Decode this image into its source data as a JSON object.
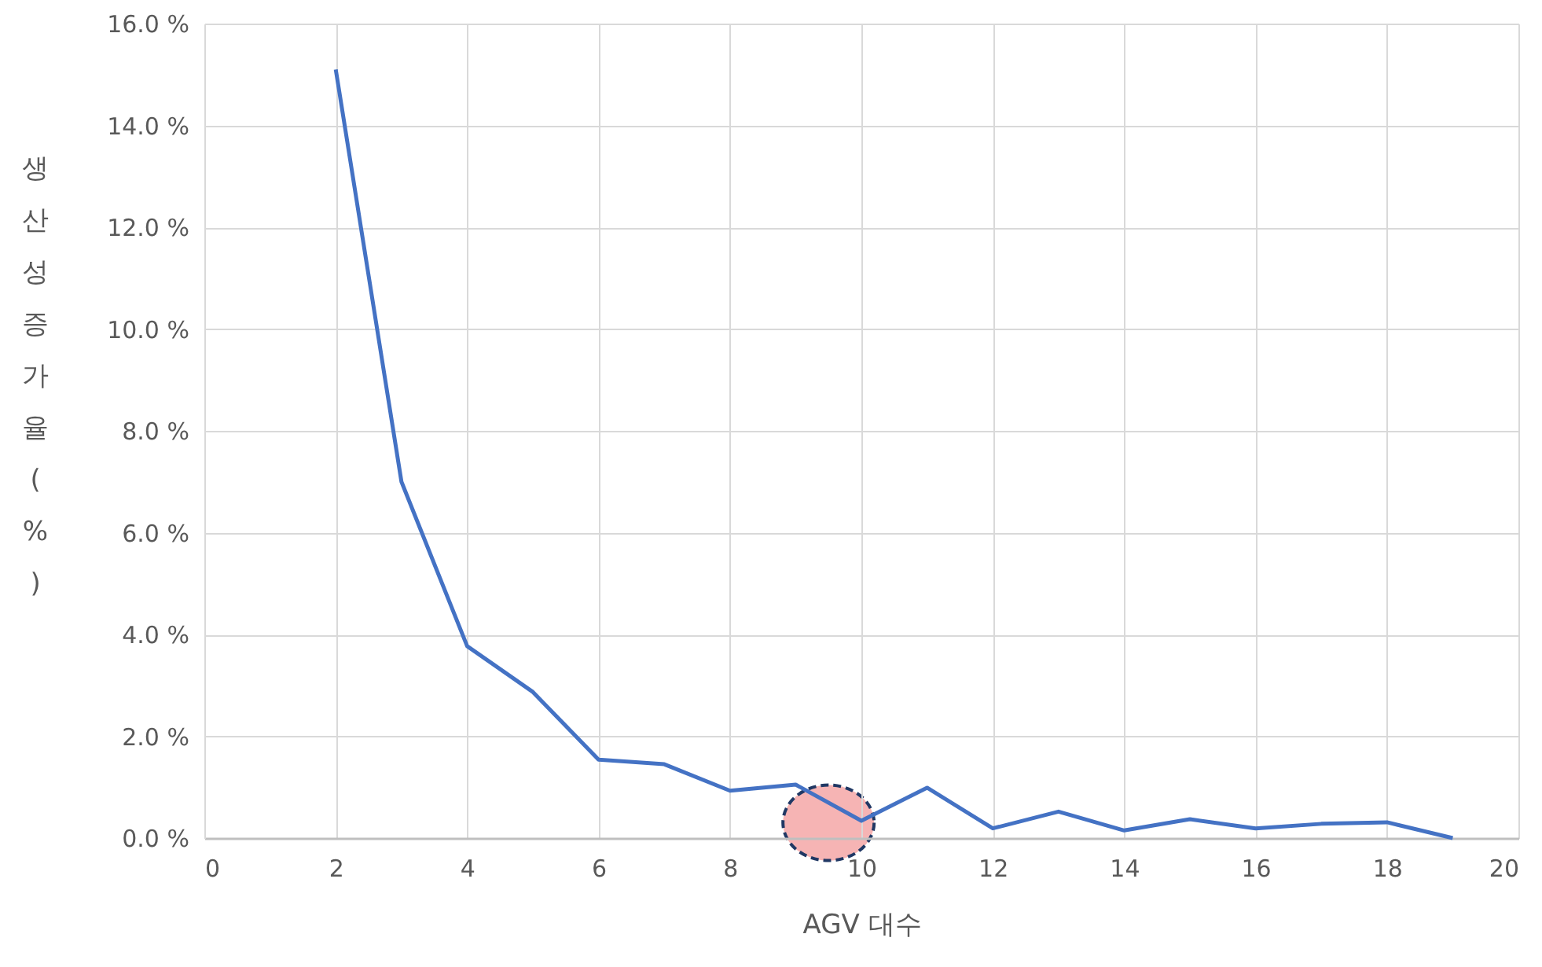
{
  "chart_data": {
    "type": "line",
    "xlabel": "AGV 대수",
    "ylabel": "생산성 증가율(%)",
    "x": [
      2,
      3,
      4,
      5,
      6,
      7,
      8,
      9,
      10,
      11,
      12,
      13,
      14,
      15,
      16,
      17,
      18,
      19
    ],
    "series": [
      {
        "color": "#4472c4",
        "values": [
          15.1,
          7.0,
          3.77,
          2.87,
          1.54,
          1.45,
          0.93,
          1.05,
          0.34,
          0.99,
          0.19,
          0.52,
          0.15,
          0.37,
          0.19,
          0.28,
          0.31,
          0.0
        ]
      }
    ],
    "xlim": [
      0,
      20
    ],
    "xticks": [
      0,
      2,
      4,
      6,
      8,
      10,
      12,
      14,
      16,
      18,
      20
    ],
    "ylim": [
      0,
      16
    ],
    "yticks": [
      {
        "value": 0,
        "label": "0.0 %"
      },
      {
        "value": 2,
        "label": "2.0 %"
      },
      {
        "value": 4,
        "label": "4.0 %"
      },
      {
        "value": 6,
        "label": "6.0 %"
      },
      {
        "value": 8,
        "label": "8.0 %"
      },
      {
        "value": 10,
        "label": "10.0 %"
      },
      {
        "value": 12,
        "label": "12.0 %"
      },
      {
        "value": 14,
        "label": "14.0 %"
      },
      {
        "value": 16,
        "label": "16.0 %"
      }
    ],
    "grid": true,
    "marker": "none",
    "line_style": "solid"
  }
}
